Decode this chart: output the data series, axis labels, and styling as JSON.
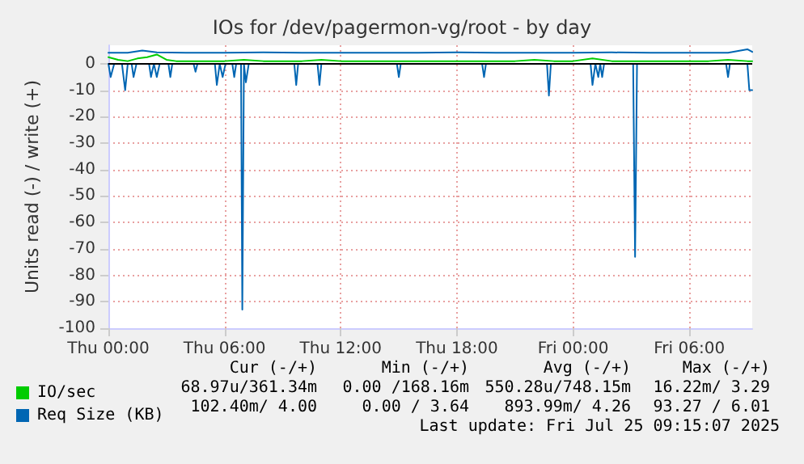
{
  "chart_data": {
    "type": "line",
    "title": "IOs for /dev/pagermon-vg/root - by day",
    "ylabel": "Units read (-) / write (+)",
    "xlim": [
      "2025-07-24T00:00",
      "2025-07-25T09:15"
    ],
    "xticks": [
      {
        "value": "2025-07-24T00:00",
        "label": "Thu 00:00"
      },
      {
        "value": "2025-07-24T06:00",
        "label": "Thu 06:00"
      },
      {
        "value": "2025-07-24T12:00",
        "label": "Thu 12:00"
      },
      {
        "value": "2025-07-24T18:00",
        "label": "Thu 18:00"
      },
      {
        "value": "2025-07-25T00:00",
        "label": "Fri 00:00"
      },
      {
        "value": "2025-07-25T06:00",
        "label": "Fri 06:00"
      }
    ],
    "ylim": [
      -100,
      7
    ],
    "yticks": [
      -100,
      -90,
      -80,
      -70,
      -60,
      -50,
      -40,
      -30,
      -20,
      -10,
      0
    ],
    "grid": true,
    "legend": "bottom left",
    "series": [
      {
        "name": "IO/sec",
        "color": "#00cc00",
        "x": [
          "2025-07-24T00:00",
          "2025-07-24T00:30",
          "2025-07-24T01:00",
          "2025-07-24T01:30",
          "2025-07-24T02:00",
          "2025-07-24T02:30",
          "2025-07-24T03:00",
          "2025-07-24T03:30",
          "2025-07-24T04:00",
          "2025-07-24T05:00",
          "2025-07-24T06:00",
          "2025-07-24T07:00",
          "2025-07-24T08:00",
          "2025-07-24T09:00",
          "2025-07-24T10:00",
          "2025-07-24T11:00",
          "2025-07-24T12:00",
          "2025-07-24T13:00",
          "2025-07-24T14:00",
          "2025-07-24T15:00",
          "2025-07-24T16:00",
          "2025-07-24T17:00",
          "2025-07-24T18:00",
          "2025-07-24T19:00",
          "2025-07-24T20:00",
          "2025-07-24T21:00",
          "2025-07-24T22:00",
          "2025-07-24T23:00",
          "2025-07-25T00:00",
          "2025-07-25T01:00",
          "2025-07-25T02:00",
          "2025-07-25T03:00",
          "2025-07-25T04:00",
          "2025-07-25T05:00",
          "2025-07-25T06:00",
          "2025-07-25T07:00",
          "2025-07-25T08:00",
          "2025-07-25T09:00",
          "2025-07-25T09:15"
        ],
        "values": [
          2.5,
          1.5,
          1.0,
          2.0,
          2.5,
          3.5,
          1.5,
          1.0,
          1.0,
          1.0,
          1.0,
          1.5,
          1.0,
          1.0,
          1.0,
          1.5,
          1.0,
          1.0,
          1.0,
          1.0,
          1.0,
          1.0,
          1.0,
          1.0,
          1.0,
          1.0,
          1.5,
          1.0,
          1.0,
          2.0,
          1.0,
          1.0,
          1.0,
          1.0,
          1.0,
          1.0,
          1.5,
          1.0,
          1.0
        ]
      },
      {
        "name": "Req Size (KB)",
        "color": "#0066b3",
        "x": [
          "2025-07-24T00:00",
          "2025-07-24T01:00",
          "2025-07-24T01:45",
          "2025-07-24T02:30",
          "2025-07-24T04:00",
          "2025-07-24T06:00",
          "2025-07-24T08:00",
          "2025-07-24T10:00",
          "2025-07-24T12:00",
          "2025-07-24T14:00",
          "2025-07-24T16:00",
          "2025-07-24T18:00",
          "2025-07-24T20:00",
          "2025-07-24T22:00",
          "2025-07-25T00:00",
          "2025-07-25T02:00",
          "2025-07-25T04:00",
          "2025-07-25T06:00",
          "2025-07-25T08:00",
          "2025-07-25T09:00",
          "2025-07-25T09:15"
        ],
        "values": [
          4.2,
          4.2,
          5.0,
          4.3,
          4.2,
          4.2,
          4.3,
          4.2,
          4.2,
          4.2,
          4.2,
          4.3,
          4.2,
          4.2,
          4.2,
          4.3,
          4.2,
          4.2,
          4.2,
          5.5,
          4.5
        ]
      },
      {
        "color": "#0066b3",
        "x": [
          "2025-07-24T00:00",
          "2025-07-24T00:07",
          "2025-07-24T00:18",
          "2025-07-24T00:42",
          "2025-07-24T00:52",
          "2025-07-24T01:00",
          "2025-07-24T01:12",
          "2025-07-24T01:18",
          "2025-07-24T01:27",
          "2025-07-24T02:06",
          "2025-07-24T02:12",
          "2025-07-24T02:21",
          "2025-07-24T02:30",
          "2025-07-24T02:39",
          "2025-07-24T03:06",
          "2025-07-24T03:12",
          "2025-07-24T03:18",
          "2025-07-24T04:24",
          "2025-07-24T04:30",
          "2025-07-24T04:36",
          "2025-07-24T05:30",
          "2025-07-24T05:36",
          "2025-07-24T05:45",
          "2025-07-24T05:54",
          "2025-07-24T06:03",
          "2025-07-24T06:24",
          "2025-07-24T06:30",
          "2025-07-24T06:36",
          "2025-07-24T06:51",
          "2025-07-24T06:55",
          "2025-07-24T07:00",
          "2025-07-24T07:06",
          "2025-07-24T07:15",
          "2025-07-24T09:36",
          "2025-07-24T09:42",
          "2025-07-24T09:48",
          "2025-07-24T10:48",
          "2025-07-24T10:54",
          "2025-07-24T11:00",
          "2025-07-24T14:54",
          "2025-07-24T15:00",
          "2025-07-24T15:06",
          "2025-07-24T19:18",
          "2025-07-24T19:24",
          "2025-07-24T19:30",
          "2025-07-24T22:39",
          "2025-07-24T22:45",
          "2025-07-24T22:51",
          "2025-07-25T00:54",
          "2025-07-25T01:00",
          "2025-07-25T01:09",
          "2025-07-25T01:18",
          "2025-07-25T01:24",
          "2025-07-25T01:30",
          "2025-07-25T01:36",
          "2025-07-25T03:06",
          "2025-07-25T03:12",
          "2025-07-25T03:18",
          "2025-07-25T07:54",
          "2025-07-25T08:00",
          "2025-07-25T08:06",
          "2025-07-25T09:00",
          "2025-07-25T09:06",
          "2025-07-25T09:15"
        ],
        "values": [
          0,
          -5,
          0,
          0,
          -10,
          0,
          0,
          -5,
          0,
          0,
          -5,
          0,
          -5,
          0,
          0,
          -5,
          0,
          0,
          -3,
          0,
          0,
          -8,
          0,
          -5,
          0,
          0,
          -5,
          0,
          0,
          -93,
          0,
          -7,
          0,
          0,
          -8,
          0,
          0,
          -8,
          0,
          0,
          -5,
          0,
          0,
          -5,
          0,
          0,
          -12,
          0,
          0,
          -8,
          0,
          -5,
          0,
          -5,
          0,
          0,
          -73,
          0,
          0,
          -5,
          0,
          0,
          -10,
          -10
        ]
      }
    ],
    "ref_lines": [
      {
        "axis": "y",
        "value": 0,
        "color": "#000000"
      }
    ],
    "annotations": [
      "Cur (-/+)",
      "Min (-/+)",
      "Avg (-/+)",
      "Max (-/+)",
      "68.97u/361.34m",
      "0.00 /168.16m",
      "550.28u/748.15m",
      "16.22m/ 3.29",
      "102.40m/ 4.00",
      "0.00 / 3.64",
      "893.99m/ 4.26",
      "93.27 / 6.01",
      "Last update: Fri Jul 25 09:15:07 2025"
    ]
  }
}
